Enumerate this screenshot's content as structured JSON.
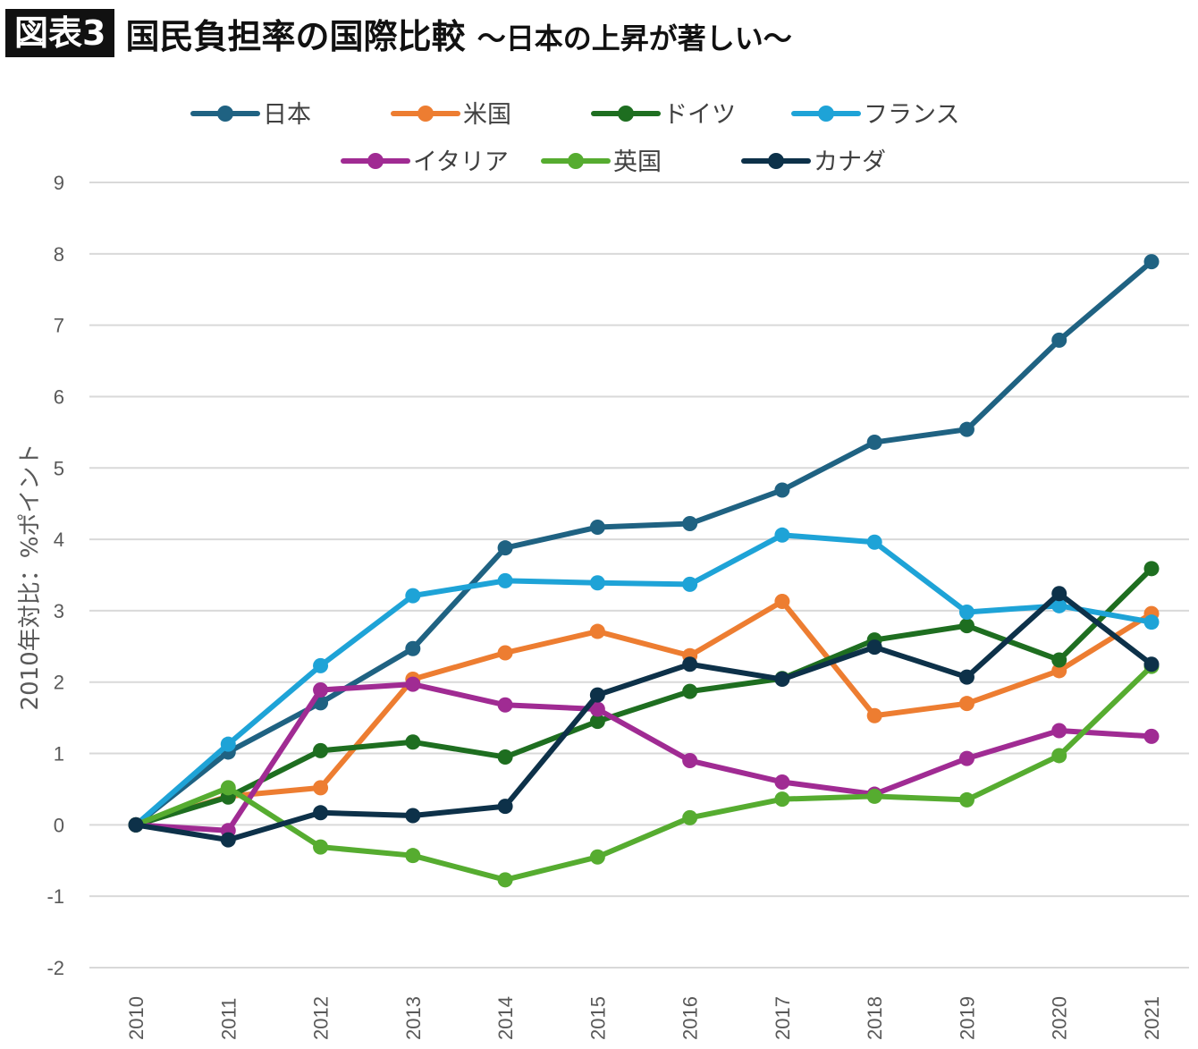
{
  "header": {
    "tag": "図表3",
    "title": "国民負担率の国際比較",
    "subtitle": "〜日本の上昇が著しい〜"
  },
  "chart_data": {
    "type": "line",
    "ylabel": "2010年対比：%ポイント",
    "ylim": [
      -2,
      9
    ],
    "yticks": [
      -2,
      -1,
      0,
      1,
      2,
      3,
      4,
      5,
      6,
      7,
      8,
      9
    ],
    "grid": true,
    "legend_position": "top",
    "x": [
      "2010",
      "2011",
      "2012",
      "2013",
      "2014",
      "2015",
      "2016",
      "2017",
      "2018",
      "2019",
      "2020",
      "2021"
    ],
    "series": [
      {
        "name": "日本",
        "color": "#1f6282",
        "values": [
          0,
          1.02,
          1.71,
          2.47,
          3.88,
          4.17,
          4.22,
          4.69,
          5.36,
          5.54,
          6.79,
          7.89
        ]
      },
      {
        "name": "米国",
        "color": "#ed7d31",
        "values": [
          0,
          0.4,
          0.52,
          2.04,
          2.41,
          2.71,
          2.37,
          3.13,
          1.53,
          1.7,
          2.16,
          2.96
        ]
      },
      {
        "name": "ドイツ",
        "color": "#1e6e20",
        "values": [
          0,
          0.39,
          1.04,
          1.16,
          0.95,
          1.45,
          1.87,
          2.05,
          2.59,
          2.79,
          2.31,
          3.59
        ]
      },
      {
        "name": "フランス",
        "color": "#1ea3d7",
        "values": [
          0,
          1.13,
          2.23,
          3.21,
          3.42,
          3.39,
          3.37,
          4.06,
          3.96,
          2.98,
          3.07,
          2.84
        ]
      },
      {
        "name": "イタリア",
        "color": "#a02b93",
        "values": [
          0,
          -0.08,
          1.89,
          1.97,
          1.68,
          1.62,
          0.9,
          0.6,
          0.43,
          0.93,
          1.32,
          1.24
        ]
      },
      {
        "name": "英国",
        "color": "#56ac30",
        "values": [
          0,
          0.52,
          -0.31,
          -0.43,
          -0.77,
          -0.45,
          0.1,
          0.36,
          0.4,
          0.35,
          0.97,
          2.22
        ]
      },
      {
        "name": "カナダ",
        "color": "#0d3149",
        "values": [
          0,
          -0.21,
          0.17,
          0.13,
          0.26,
          1.82,
          2.25,
          2.04,
          2.49,
          2.07,
          3.24,
          2.25
        ]
      }
    ]
  }
}
